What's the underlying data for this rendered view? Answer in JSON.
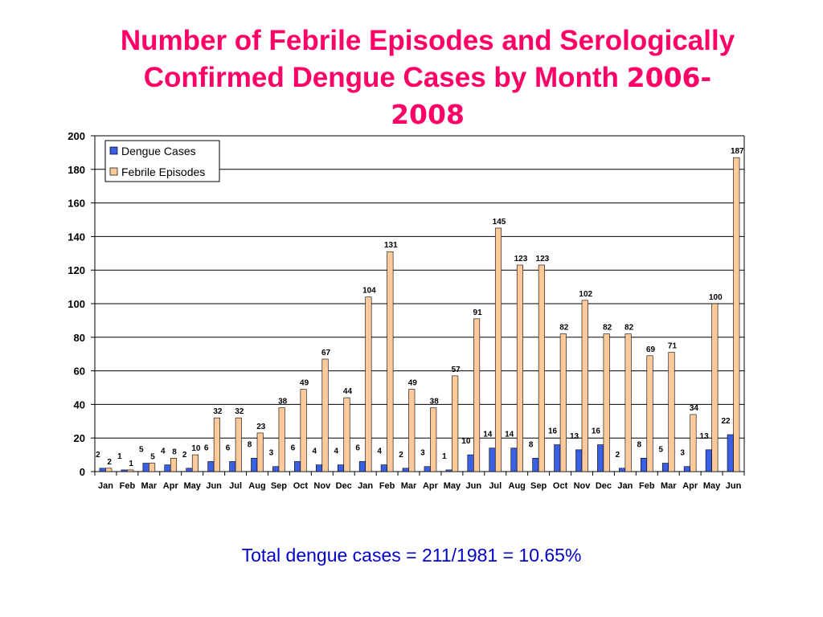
{
  "title": {
    "line1": "Number of Febrile Episodes and Serologically",
    "line2a": "Confirmed Dengue Cases by Month ",
    "line2b": "2006-",
    "line3": "2008"
  },
  "footer": "Total dengue cases = 211/1981 = 10.65%",
  "colors": {
    "dengue": "#3a5fe0",
    "febrile": "#fcc99a",
    "title": "#ff0066",
    "footer": "#0000cc"
  },
  "chart_data": {
    "type": "bar",
    "title": "Number of Febrile Episodes and Serologically Confirmed Dengue Cases by Month 2006-2008",
    "xlabel": "",
    "ylabel": "",
    "ylim": [
      0,
      200
    ],
    "yticks": [
      0,
      20,
      40,
      60,
      80,
      100,
      120,
      140,
      160,
      180,
      200
    ],
    "grid": true,
    "legend_position": "top-left",
    "categories": [
      "Jan",
      "Feb",
      "Mar",
      "Apr",
      "May",
      "Jun",
      "Jul",
      "Aug",
      "Sep",
      "Oct",
      "Nov",
      "Dec",
      "Jan",
      "Feb",
      "Mar",
      "Apr",
      "May",
      "Jun",
      "Jul",
      "Aug",
      "Sep",
      "Oct",
      "Nov",
      "Dec",
      "Jan",
      "Feb",
      "Mar",
      "Apr",
      "May",
      "Jun"
    ],
    "series": [
      {
        "name": "Dengue Cases",
        "values": [
          2,
          1,
          5,
          4,
          2,
          6,
          6,
          8,
          3,
          6,
          4,
          4,
          6,
          4,
          2,
          3,
          1,
          10,
          14,
          14,
          8,
          16,
          13,
          16,
          2,
          8,
          5,
          3,
          13,
          22
        ]
      },
      {
        "name": "Febrile Episodes",
        "values": [
          2,
          1,
          5,
          8,
          10,
          32,
          32,
          23,
          38,
          49,
          67,
          44,
          104,
          131,
          49,
          38,
          57,
          91,
          145,
          123,
          123,
          82,
          102,
          82,
          82,
          69,
          71,
          34,
          100,
          187
        ]
      }
    ]
  }
}
